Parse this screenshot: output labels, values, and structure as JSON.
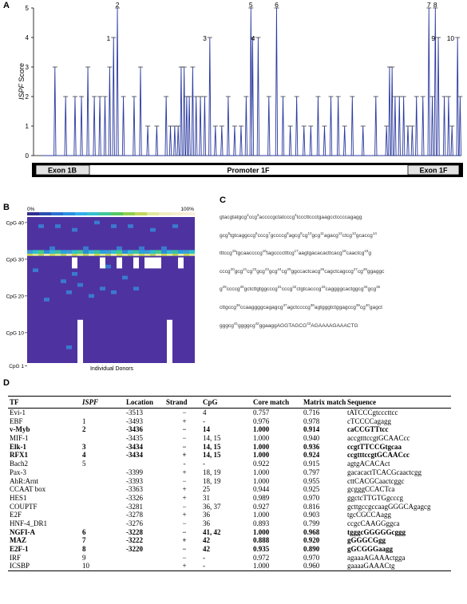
{
  "panels": {
    "a": "A",
    "b": "B",
    "c": "C",
    "d": "D"
  },
  "panel_a": {
    "ylabel_italic": "ISPF",
    "ylabel_rest": " Score",
    "yticks": [
      "0",
      "1",
      "2",
      "3",
      "4",
      "5"
    ],
    "gene_regions": [
      "Exon 1B",
      "Promoter 1F",
      "Exon 1F"
    ],
    "peak_labels": [
      {
        "label": "1",
        "x": 0.187,
        "y": 4
      },
      {
        "label": "2",
        "x": 0.196,
        "y": 5
      },
      {
        "label": "3",
        "x": 0.412,
        "y": 4
      },
      {
        "label": "4",
        "x": 0.525,
        "y": 4
      },
      {
        "label": "5",
        "x": 0.508,
        "y": 5
      },
      {
        "label": "6",
        "x": 0.568,
        "y": 5
      },
      {
        "label": "7",
        "x": 0.924,
        "y": 5
      },
      {
        "label": "8",
        "x": 0.939,
        "y": 5
      },
      {
        "label": "9",
        "x": 0.946,
        "y": 4
      },
      {
        "label": "10",
        "x": 0.991,
        "y": 4
      }
    ]
  },
  "chart_data": {
    "type": "line",
    "ylabel": "ISPF Score",
    "ylim": [
      0,
      5
    ],
    "xlim": [
      0,
      1
    ],
    "points": [
      [
        0.05,
        3
      ],
      [
        0.075,
        2
      ],
      [
        0.097,
        2
      ],
      [
        0.112,
        2
      ],
      [
        0.127,
        3
      ],
      [
        0.142,
        2
      ],
      [
        0.155,
        2
      ],
      [
        0.167,
        2
      ],
      [
        0.178,
        3
      ],
      [
        0.187,
        4
      ],
      [
        0.196,
        5
      ],
      [
        0.21,
        2
      ],
      [
        0.235,
        2
      ],
      [
        0.25,
        3
      ],
      [
        0.267,
        1
      ],
      [
        0.288,
        1
      ],
      [
        0.31,
        2
      ],
      [
        0.32,
        1
      ],
      [
        0.33,
        1
      ],
      [
        0.338,
        1
      ],
      [
        0.345,
        3
      ],
      [
        0.352,
        3
      ],
      [
        0.358,
        2
      ],
      [
        0.364,
        2
      ],
      [
        0.372,
        3
      ],
      [
        0.38,
        2
      ],
      [
        0.39,
        2
      ],
      [
        0.4,
        2
      ],
      [
        0.412,
        4
      ],
      [
        0.425,
        1
      ],
      [
        0.44,
        1
      ],
      [
        0.455,
        2
      ],
      [
        0.47,
        1
      ],
      [
        0.485,
        1
      ],
      [
        0.497,
        2
      ],
      [
        0.508,
        5
      ],
      [
        0.512,
        4
      ],
      [
        0.525,
        4
      ],
      [
        0.55,
        2
      ],
      [
        0.568,
        5
      ],
      [
        0.583,
        2
      ],
      [
        0.6,
        1
      ],
      [
        0.615,
        2
      ],
      [
        0.632,
        1
      ],
      [
        0.648,
        1
      ],
      [
        0.665,
        2
      ],
      [
        0.68,
        1
      ],
      [
        0.695,
        2
      ],
      [
        0.712,
        2
      ],
      [
        0.727,
        1
      ],
      [
        0.745,
        2
      ],
      [
        0.77,
        1
      ],
      [
        0.8,
        2
      ],
      [
        0.825,
        1
      ],
      [
        0.832,
        3
      ],
      [
        0.838,
        3
      ],
      [
        0.845,
        2
      ],
      [
        0.855,
        2
      ],
      [
        0.865,
        2
      ],
      [
        0.875,
        1
      ],
      [
        0.885,
        1
      ],
      [
        0.895,
        2
      ],
      [
        0.91,
        2
      ],
      [
        0.924,
        5
      ],
      [
        0.932,
        2
      ],
      [
        0.939,
        5
      ],
      [
        0.946,
        4
      ],
      [
        0.96,
        2
      ],
      [
        0.97,
        2
      ],
      [
        0.978,
        1
      ],
      [
        0.991,
        4
      ],
      [
        0.997,
        2
      ]
    ]
  },
  "panel_b": {
    "scale_left": "0%",
    "scale_right": "100%",
    "ylabels": [
      "CpG 40",
      "CpG 30",
      "CpG 20",
      "CpG 10",
      "CpG 1"
    ],
    "xlabel": "Individual Donors",
    "scale_colors": [
      "#2f2f8f",
      "#2a4fb0",
      "#2a70d0",
      "#2a90e0",
      "#33aeea",
      "#35c0cf",
      "#40c898",
      "#55c860",
      "#90d050",
      "#c0d860",
      "#e0e8a0",
      "#f0ecc0",
      "#f6ecd0",
      "#f8efd8"
    ]
  },
  "panel_c": {
    "lines": [
      [
        [
          "gtacg",
          ""
        ],
        [
          "tatgcg",
          "2"
        ],
        [
          "ccg",
          "3"
        ],
        [
          "accccgctatcccg",
          "4"
        ],
        [
          "tcccttccctgaagcctccccagagg",
          ""
        ]
      ],
      [
        [
          "gcg",
          "5"
        ],
        [
          "tgtcaggccg",
          "6"
        ],
        [
          "cccg",
          "7"
        ],
        [
          "gccccg",
          "8"
        ],
        [
          "agcg",
          "9"
        ],
        [
          "cg",
          "10"
        ],
        [
          "gcg",
          "11"
        ],
        [
          "agacg",
          "12"
        ],
        [
          "ctcg",
          "13"
        ],
        [
          "gcaccg",
          ""
        ],
        [
          "",
          "14"
        ]
      ],
      [
        [
          "tttccg",
          "15"
        ],
        [
          "tgcaaccccg",
          "16"
        ],
        [
          "tagcccctttcg",
          "17"
        ],
        [
          "aagtgacacacttcacg",
          "18"
        ],
        [
          "caactcg",
          "19"
        ],
        [
          "g",
          ""
        ]
      ],
      [
        [
          "cccg",
          "20"
        ],
        [
          "gcg",
          "21"
        ],
        [
          "cg",
          "22"
        ],
        [
          "gcg",
          "23"
        ],
        [
          "gcg",
          "24"
        ],
        [
          "cg",
          "25"
        ],
        [
          "ggccactcacg",
          "26"
        ],
        [
          "cagctcagccg",
          "27"
        ],
        [
          "cg",
          "28"
        ],
        [
          "ggaggc",
          ""
        ]
      ],
      [
        [
          "g",
          "29"
        ],
        [
          "ccccg",
          "30"
        ],
        [
          "gctcttgtggcccg",
          "31"
        ],
        [
          "cccg",
          "32"
        ],
        [
          "ctgtcacccg",
          "33"
        ],
        [
          "caggggcactggcg",
          "34"
        ],
        [
          "gcg",
          "35"
        ]
      ],
      [
        [
          "cttgccg",
          "36"
        ],
        [
          "ccaaggggcagagcg",
          "37"
        ],
        [
          "agctccccg",
          "38"
        ],
        [
          "agtgggtctggagccg",
          "39"
        ],
        [
          "cg",
          "40"
        ],
        [
          "gagct",
          ""
        ]
      ],
      [
        [
          "gggcg",
          "41"
        ],
        [
          "ggggcg",
          "42"
        ],
        [
          "ggaaggAGGTAGCG",
          "43"
        ],
        [
          "AGAAAAGAAACTG",
          ""
        ]
      ]
    ]
  },
  "table": {
    "headers": {
      "tf": "TF",
      "ispf": "ISPF",
      "location": "Location",
      "strand": "Strand",
      "cpg": "CpG",
      "core": "Core match",
      "matrix": "Matrix match",
      "sequence": "Sequence"
    },
    "rows": [
      {
        "tf": "Evi-1",
        "ispf": "",
        "loc": "-3513",
        "strand": "−",
        "cpg": "4",
        "core": "0.757",
        "matrix": "0.716",
        "seq": "tATCCCgtcccttcc",
        "bold": false
      },
      {
        "tf": "EBF",
        "ispf": "1",
        "loc": "-3493",
        "strand": "+",
        "cpg": "-",
        "core": "0.976",
        "matrix": "0.978",
        "seq": "cTCCCCagagg",
        "bold": false
      },
      {
        "tf": "v-Myb",
        "ispf": "2",
        "loc": "-3436",
        "strand": "−",
        "cpg": "14",
        "core": "1.000",
        "matrix": "0.914",
        "seq": "caCCGTTtcc",
        "bold": true
      },
      {
        "tf": "MIF-1",
        "ispf": "",
        "loc": "-3435",
        "strand": "−",
        "cpg": "14, 15",
        "core": "1.000",
        "matrix": "0.940",
        "seq": "accgtttccgtGCAACcc",
        "bold": false
      },
      {
        "tf": "Elk-1",
        "ispf": "3",
        "loc": "-3434",
        "strand": "−",
        "cpg": "14, 15",
        "core": "1.000",
        "matrix": "0.936",
        "seq": "ccgtTTCCGtgcaa",
        "bold": true
      },
      {
        "tf": "RFX1",
        "ispf": "4",
        "loc": "-3434",
        "strand": "+",
        "cpg": "14, 15",
        "core": "1.000",
        "matrix": "0.924",
        "seq": "ccgtttccgtGCAACcc",
        "bold": true
      },
      {
        "tf": "Bach2",
        "ispf": "5",
        "loc": "",
        "strand": "-",
        "cpg": "-",
        "core": "0.922",
        "matrix": "0.915",
        "seq": "agtgACACAct",
        "bold": false
      },
      {
        "tf": "Pax-3",
        "ispf": "",
        "loc": "-3399",
        "strand": "+",
        "cpg": "18, 19",
        "core": "1.000",
        "matrix": "0.797",
        "seq": "gacacactTCACGcaactcgg",
        "bold": false
      },
      {
        "tf": "AhR:Arnt",
        "ispf": "",
        "loc": "-3393",
        "strand": "−",
        "cpg": "18, 19",
        "core": "1.000",
        "matrix": "0.955",
        "seq": "cttCACGCaactcggc",
        "bold": false
      },
      {
        "tf": "CCAAT box",
        "ispf": "",
        "loc": "-3363",
        "strand": "+",
        "cpg": "25",
        "core": "0.944",
        "matrix": "0.925",
        "seq": "gcgggCCACTca",
        "bold": false
      },
      {
        "tf": "HES1",
        "ispf": "",
        "loc": "-3326",
        "strand": "+",
        "cpg": "31",
        "core": "0.989",
        "matrix": "0.970",
        "seq": "ggctcTTGTGgcccg",
        "bold": false
      },
      {
        "tf": "COUPTF",
        "ispf": "",
        "loc": "-3281",
        "strand": "−",
        "cpg": "36, 37",
        "core": "0.927",
        "matrix": "0.816",
        "seq": "gcttgccgccaagGGGCAgagcg",
        "bold": false
      },
      {
        "tf": "E2F",
        "ispf": "",
        "loc": "-3278",
        "strand": "+",
        "cpg": "36",
        "core": "1.000",
        "matrix": "0.903",
        "seq": "tgcCGCCAagg",
        "bold": false
      },
      {
        "tf": "HNF-4_DR1",
        "ispf": "",
        "loc": "-3276",
        "strand": "−",
        "cpg": "36",
        "core": "0.893",
        "matrix": "0.799",
        "seq": "ccgcCAAGGggca",
        "bold": false
      },
      {
        "tf": "NGFI-A",
        "ispf": "6",
        "loc": "-3228",
        "strand": "−",
        "cpg": "41, 42",
        "core": "1.000",
        "matrix": "0.968",
        "seq": "tgggcGGGGGcggg",
        "bold": true
      },
      {
        "tf": "MAZ",
        "ispf": "7",
        "loc": "-3222",
        "strand": "+",
        "cpg": "42",
        "core": "0.888",
        "matrix": "0.920",
        "seq": "gGGGCGgg",
        "bold": true
      },
      {
        "tf": "E2F-1",
        "ispf": "8",
        "loc": "-3220",
        "strand": "−",
        "cpg": "42",
        "core": "0.935",
        "matrix": "0.890",
        "seq": "gGCGGGaagg",
        "bold": true
      },
      {
        "tf": "IRF",
        "ispf": "9",
        "loc": "",
        "strand": "−",
        "cpg": "-",
        "core": "0.972",
        "matrix": "0.970",
        "seq": "agaaaAGAAActgga",
        "bold": false
      },
      {
        "tf": "ICSBP",
        "ispf": "10",
        "loc": "",
        "strand": "+",
        "cpg": "-",
        "core": "1.000",
        "matrix": "0.960",
        "seq": "gaaaaGAAACtg",
        "bold": false
      }
    ]
  }
}
